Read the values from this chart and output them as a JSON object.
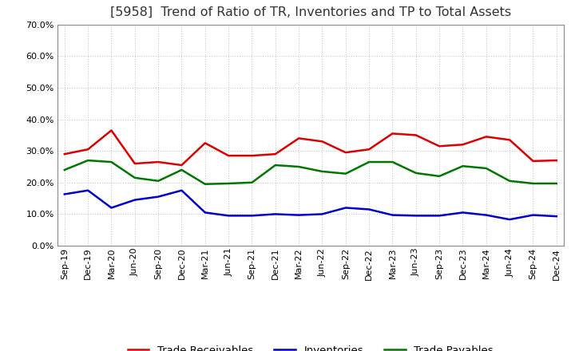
{
  "title": "[5958]  Trend of Ratio of TR, Inventories and TP to Total Assets",
  "x_labels": [
    "Sep-19",
    "Dec-19",
    "Mar-20",
    "Jun-20",
    "Sep-20",
    "Dec-20",
    "Mar-21",
    "Jun-21",
    "Sep-21",
    "Dec-21",
    "Mar-22",
    "Jun-22",
    "Sep-22",
    "Dec-22",
    "Mar-23",
    "Jun-23",
    "Sep-23",
    "Dec-23",
    "Mar-24",
    "Jun-24",
    "Sep-24",
    "Dec-24"
  ],
  "trade_receivables": [
    0.29,
    0.305,
    0.365,
    0.26,
    0.265,
    0.255,
    0.325,
    0.285,
    0.285,
    0.29,
    0.34,
    0.33,
    0.295,
    0.305,
    0.355,
    0.35,
    0.315,
    0.32,
    0.345,
    0.335,
    0.268,
    0.27
  ],
  "inventories": [
    0.163,
    0.175,
    0.12,
    0.145,
    0.155,
    0.175,
    0.105,
    0.095,
    0.095,
    0.1,
    0.097,
    0.1,
    0.12,
    0.115,
    0.097,
    0.095,
    0.095,
    0.105,
    0.097,
    0.083,
    0.097,
    0.093
  ],
  "trade_payables": [
    0.24,
    0.27,
    0.265,
    0.215,
    0.205,
    0.24,
    0.195,
    0.197,
    0.2,
    0.255,
    0.25,
    0.235,
    0.228,
    0.265,
    0.265,
    0.23,
    0.22,
    0.252,
    0.245,
    0.205,
    0.197,
    0.197
  ],
  "ylim": [
    0.0,
    0.7
  ],
  "yticks": [
    0.0,
    0.1,
    0.2,
    0.3,
    0.4,
    0.5,
    0.6,
    0.7
  ],
  "line_colors": {
    "trade_receivables": "#dd0000",
    "inventories": "#0000cc",
    "trade_payables": "#007700"
  },
  "line_width": 1.8,
  "background_color": "#ffffff",
  "grid_color": "#bbbbbb",
  "title_fontsize": 11.5,
  "legend_fontsize": 9.5,
  "tick_fontsize": 8
}
